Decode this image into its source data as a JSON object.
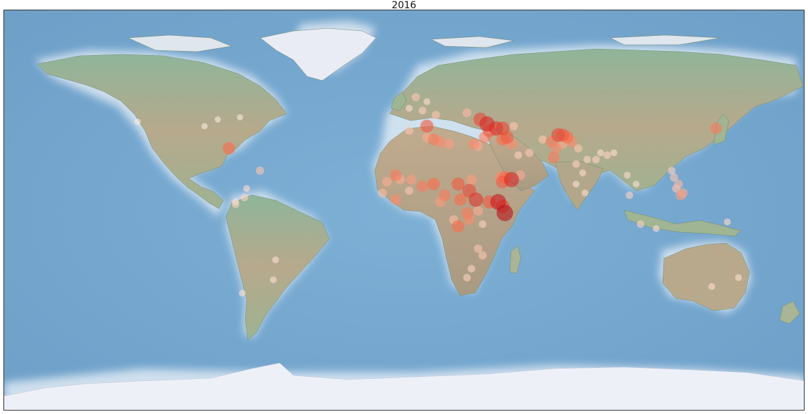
{
  "title": "2016",
  "map": {
    "projection": "equirectangular",
    "basemap": "shaded-relief",
    "lon_range": [
      -180,
      180
    ],
    "lat_range": [
      -90,
      90
    ],
    "ocean_color": "#7aaad0",
    "land_color": "#a8b99a",
    "ice_color": "#eef0f8",
    "marker_colormap": [
      "#fff5f0",
      "#fcbba1",
      "#fb6a4a",
      "#cb181d",
      "#67000d"
    ]
  },
  "events": [
    {
      "lon": -79,
      "lat": 28,
      "v": 0.5
    },
    {
      "lon": -90,
      "lat": 38,
      "v": 0.05
    },
    {
      "lon": -84,
      "lat": 41,
      "v": 0.05
    },
    {
      "lon": -120,
      "lat": 40,
      "v": 0.05
    },
    {
      "lon": -74,
      "lat": 42,
      "v": 0.05
    },
    {
      "lon": -71,
      "lat": 10,
      "v": 0.1
    },
    {
      "lon": -72,
      "lat": 6,
      "v": 0.15
    },
    {
      "lon": -76,
      "lat": 3,
      "v": 0.15
    },
    {
      "lon": -76,
      "lat": 4,
      "v": 0.1
    },
    {
      "lon": -58,
      "lat": -22,
      "v": 0.1
    },
    {
      "lon": -59,
      "lat": -31,
      "v": 0.1
    },
    {
      "lon": -73,
      "lat": -37,
      "v": 0.1
    },
    {
      "lon": -65,
      "lat": 18,
      "v": 0.2
    },
    {
      "lon": 5,
      "lat": 51,
      "v": 0.2
    },
    {
      "lon": 10,
      "lat": 49,
      "v": 0.1
    },
    {
      "lon": 8,
      "lat": 45,
      "v": 0.15
    },
    {
      "lon": 14,
      "lat": 43,
      "v": 0.2
    },
    {
      "lon": 2,
      "lat": 46,
      "v": 0.1
    },
    {
      "lon": 10,
      "lat": 38,
      "v": 0.55
    },
    {
      "lon": 28,
      "lat": 44,
      "v": 0.25
    },
    {
      "lon": 34,
      "lat": 41,
      "v": 0.6
    },
    {
      "lon": 37,
      "lat": 39,
      "v": 0.7
    },
    {
      "lon": 41,
      "lat": 37,
      "v": 0.65
    },
    {
      "lon": 38,
      "lat": 36,
      "v": 0.55
    },
    {
      "lon": 44,
      "lat": 37,
      "v": 0.6
    },
    {
      "lon": 46,
      "lat": 33,
      "v": 0.55
    },
    {
      "lon": 44,
      "lat": 32,
      "v": 0.5
    },
    {
      "lon": 36,
      "lat": 33,
      "v": 0.45
    },
    {
      "lon": 48,
      "lat": 30,
      "v": 0.4
    },
    {
      "lon": 13,
      "lat": 32,
      "v": 0.45
    },
    {
      "lon": 16,
      "lat": 31,
      "v": 0.4
    },
    {
      "lon": 10,
      "lat": 33,
      "v": 0.3
    },
    {
      "lon": 20,
      "lat": 30,
      "v": 0.35
    },
    {
      "lon": 2,
      "lat": 36,
      "v": 0.2
    },
    {
      "lon": 31,
      "lat": 30,
      "v": 0.4
    },
    {
      "lon": 33,
      "lat": 29,
      "v": 0.3
    },
    {
      "lon": 45,
      "lat": 15,
      "v": 0.5
    },
    {
      "lon": 44,
      "lat": 13,
      "v": 0.55
    },
    {
      "lon": 48,
      "lat": 14,
      "v": 0.7
    },
    {
      "lon": 43,
      "lat": 15,
      "v": 0.4
    },
    {
      "lon": 52,
      "lat": 16,
      "v": 0.3
    },
    {
      "lon": 44,
      "lat": 2,
      "v": 0.6
    },
    {
      "lon": 42,
      "lat": 4,
      "v": 0.75
    },
    {
      "lon": 45,
      "lat": -1,
      "v": 0.8
    },
    {
      "lon": 38,
      "lat": 4,
      "v": 0.55
    },
    {
      "lon": 32,
      "lat": 5,
      "v": 0.65
    },
    {
      "lon": 29,
      "lat": 9,
      "v": 0.6
    },
    {
      "lon": 24,
      "lat": 12,
      "v": 0.55
    },
    {
      "lon": 30,
      "lat": 14,
      "v": 0.35
    },
    {
      "lon": 25,
      "lat": 5,
      "v": 0.5
    },
    {
      "lon": 18,
      "lat": 7,
      "v": 0.45
    },
    {
      "lon": 16,
      "lat": 4,
      "v": 0.35
    },
    {
      "lon": 13,
      "lat": 12,
      "v": 0.5
    },
    {
      "lon": 8,
      "lat": 11,
      "v": 0.45
    },
    {
      "lon": 3,
      "lat": 14,
      "v": 0.35
    },
    {
      "lon": -2,
      "lat": 14,
      "v": 0.3
    },
    {
      "lon": -4,
      "lat": 16,
      "v": 0.45
    },
    {
      "lon": -8,
      "lat": 13,
      "v": 0.3
    },
    {
      "lon": -10,
      "lat": 8,
      "v": 0.25
    },
    {
      "lon": -4,
      "lat": 5,
      "v": 0.4
    },
    {
      "lon": 2,
      "lat": 9,
      "v": 0.2
    },
    {
      "lon": 28,
      "lat": -1,
      "v": 0.45
    },
    {
      "lon": 29,
      "lat": -4,
      "v": 0.4
    },
    {
      "lon": 24,
      "lat": -7,
      "v": 0.5
    },
    {
      "lon": 22,
      "lat": -4,
      "v": 0.25
    },
    {
      "lon": 33,
      "lat": 0,
      "v": 0.3
    },
    {
      "lon": 35,
      "lat": -6,
      "v": 0.15
    },
    {
      "lon": 33,
      "lat": -17,
      "v": 0.2
    },
    {
      "lon": 35,
      "lat": -20,
      "v": 0.2
    },
    {
      "lon": 30,
      "lat": -26,
      "v": 0.15
    },
    {
      "lon": 28,
      "lat": -30,
      "v": 0.15
    },
    {
      "lon": 69,
      "lat": 34,
      "v": 0.6
    },
    {
      "lon": 71,
      "lat": 34,
      "v": 0.55
    },
    {
      "lon": 66,
      "lat": 31,
      "v": 0.45
    },
    {
      "lon": 68,
      "lat": 28,
      "v": 0.4
    },
    {
      "lon": 73,
      "lat": 33,
      "v": 0.5
    },
    {
      "lon": 75,
      "lat": 31,
      "v": 0.4
    },
    {
      "lon": 71,
      "lat": 30,
      "v": 0.3
    },
    {
      "lon": 67,
      "lat": 24,
      "v": 0.45
    },
    {
      "lon": 62,
      "lat": 32,
      "v": 0.2
    },
    {
      "lon": 78,
      "lat": 28,
      "v": 0.2
    },
    {
      "lon": 77,
      "lat": 21,
      "v": 0.15
    },
    {
      "lon": 82,
      "lat": 23,
      "v": 0.15
    },
    {
      "lon": 86,
      "lat": 23,
      "v": 0.15
    },
    {
      "lon": 88,
      "lat": 26,
      "v": 0.1
    },
    {
      "lon": 91,
      "lat": 25,
      "v": 0.15
    },
    {
      "lon": 94,
      "lat": 26,
      "v": 0.1
    },
    {
      "lon": 80,
      "lat": 17,
      "v": 0.1
    },
    {
      "lon": 77,
      "lat": 12,
      "v": 0.1
    },
    {
      "lon": 81,
      "lat": 8,
      "v": 0.1
    },
    {
      "lon": 100,
      "lat": 16,
      "v": 0.1
    },
    {
      "lon": 101,
      "lat": 7,
      "v": 0.15
    },
    {
      "lon": 104,
      "lat": 12,
      "v": 0.1
    },
    {
      "lon": 121,
      "lat": 15,
      "v": 0.2
    },
    {
      "lon": 123,
      "lat": 12,
      "v": 0.25
    },
    {
      "lon": 125,
      "lat": 8,
      "v": 0.3
    },
    {
      "lon": 124,
      "lat": 7,
      "v": 0.35
    },
    {
      "lon": 122,
      "lat": 10,
      "v": 0.2
    },
    {
      "lon": 120,
      "lat": 18,
      "v": 0.15
    },
    {
      "lon": 140,
      "lat": 37,
      "v": 0.45
    },
    {
      "lon": 106,
      "lat": -6,
      "v": 0.15
    },
    {
      "lon": 113,
      "lat": -8,
      "v": 0.1
    },
    {
      "lon": 145,
      "lat": -5,
      "v": 0.1
    },
    {
      "lon": 138,
      "lat": -34,
      "v": 0.1
    },
    {
      "lon": 150,
      "lat": -30,
      "v": 0.1
    },
    {
      "lon": 49,
      "lat": 38,
      "v": 0.2
    },
    {
      "lon": 56,
      "lat": 26,
      "v": 0.2
    },
    {
      "lon": 51,
      "lat": 25,
      "v": 0.15
    }
  ]
}
